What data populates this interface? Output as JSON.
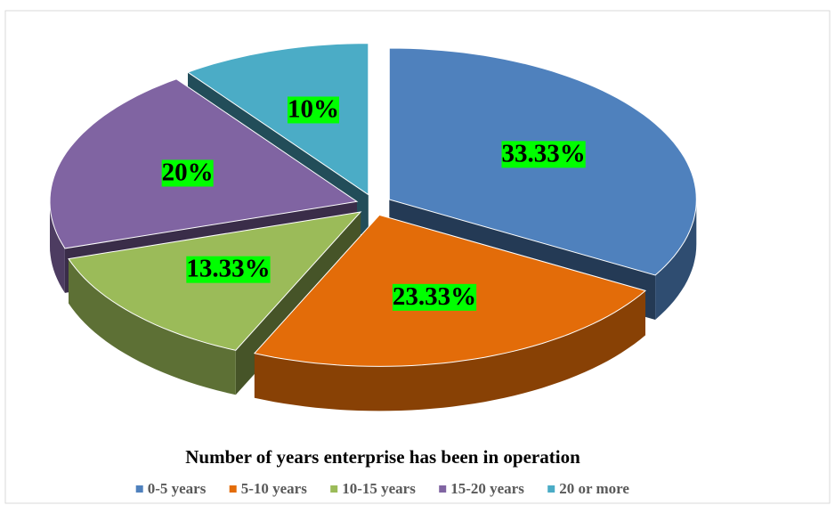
{
  "chart_data": {
    "type": "pie",
    "title": "Number of years enterprise has been in operation",
    "categories": [
      "0-5 years",
      "5-10 years",
      "10-15 years",
      "15-20 years",
      "20 or more"
    ],
    "values": [
      33.33,
      23.33,
      13.33,
      20,
      10
    ],
    "value_labels": [
      "33.33%",
      "23.33%",
      "13.33%",
      "20%",
      "10%"
    ],
    "colors": [
      "#4f81bd",
      "#e36c09",
      "#9bbb59",
      "#8064a2",
      "#4bacc6"
    ],
    "legend": "bottom"
  }
}
